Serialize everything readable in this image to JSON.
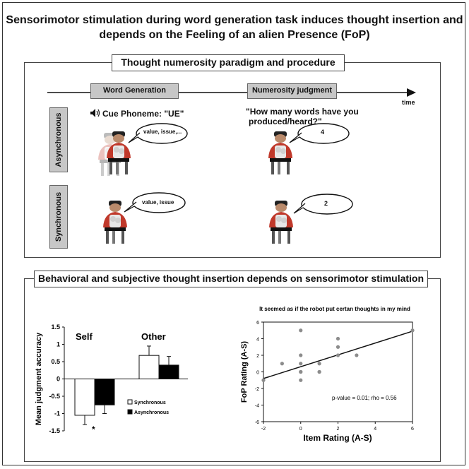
{
  "title_line1": "Sensorimotor stimulation during word generation task induces thought insertion and",
  "title_line2": "depends on the Feeling of an alien Presence (FoP)",
  "paradigm": {
    "title": "Thought numerosity paradigm and procedure",
    "word_generation": "Word Generation",
    "numerosity_judgment": "Numerosity judgment",
    "time_label": "time",
    "asynchronous": "Asynchronous",
    "synchronous": "Synchronous",
    "cue": "Cue Phoneme: \"UE\"",
    "question_line1": "\"How many words have you",
    "question_line2": "produced/heard?\"",
    "bubble_async_words": "value, issue,...",
    "bubble_async_count": "4",
    "bubble_sync_words": "value, issue",
    "bubble_sync_count": "2"
  },
  "behavioral": {
    "title": "Behavioral and subjective thought insertion depends on sensorimotor stimulation"
  },
  "chart_data": [
    {
      "type": "bar",
      "ylabel": "Mean judgment accuracy",
      "categories": [
        "Self",
        "Other"
      ],
      "series": [
        {
          "name": "Synchronous",
          "values": [
            -1.05,
            0.68
          ],
          "errors": [
            0.27,
            0.27
          ],
          "color": "#ffffff"
        },
        {
          "name": "Asynchronous",
          "values": [
            -0.75,
            0.4
          ],
          "errors": [
            0.25,
            0.25
          ],
          "color": "#000000"
        }
      ],
      "ylim": [
        -1.5,
        1.5
      ],
      "yticks": [
        "1.5",
        "1",
        "0.5",
        "0",
        "-0.5",
        "-1",
        "-1.5"
      ],
      "annotation": "*",
      "legend": "inside-right"
    },
    {
      "type": "scatter",
      "title": "It seemed as if the robot put certan thoughts in my mind",
      "xlabel": "Item Rating (A-S)",
      "ylabel": "FoP Rating (A-S)",
      "xlim": [
        -2,
        6
      ],
      "ylim": [
        -6,
        6
      ],
      "xticks": [
        "-2",
        "0",
        "2",
        "4",
        "6"
      ],
      "yticks": [
        "6",
        "4",
        "2",
        "0",
        "-2",
        "-4",
        "-6"
      ],
      "points": [
        [
          -2,
          -1
        ],
        [
          -1,
          1
        ],
        [
          0,
          5
        ],
        [
          0,
          2
        ],
        [
          0,
          1
        ],
        [
          0,
          0
        ],
        [
          0,
          0
        ],
        [
          0,
          -1
        ],
        [
          1,
          1
        ],
        [
          1,
          0
        ],
        [
          1,
          0
        ],
        [
          2,
          4
        ],
        [
          2,
          3
        ],
        [
          2,
          2
        ],
        [
          3,
          2
        ],
        [
          6,
          5
        ]
      ],
      "fit_line": [
        [
          -2,
          -0.8
        ],
        [
          6,
          4.9
        ]
      ],
      "annotation": "p-value = 0.01; rho = 0.56"
    }
  ]
}
